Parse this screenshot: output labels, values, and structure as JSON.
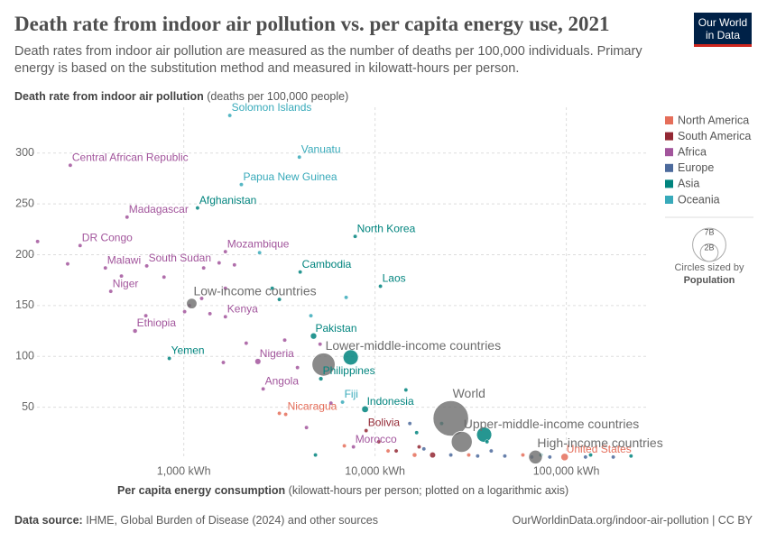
{
  "chart_data": {
    "type": "scatter",
    "title": "Death rate from indoor air pollution vs. per capita energy use, 2021",
    "subtitle": "Death rates from indoor air pollution are measured as the number of deaths per 100,000 individuals. Primary energy is based on the substitution method and measured in kilowatt-hours per person.",
    "y_label_bold": "Death rate from indoor air pollution",
    "y_label_rest": "(deaths per 100,000 people)",
    "x_label_bold": "Per capita energy consumption",
    "x_label_rest": "(kilowatt-hours per person; plotted on a logarithmic axis)",
    "source_label": "Data source:",
    "source_text": "IHME, Global Burden of Disease (2024) and other sources",
    "footer_right": "OurWorldinData.org/indoor-air-pollution | CC BY",
    "logo": [
      "Our World",
      "in Data"
    ],
    "x_log": true,
    "grid": true,
    "xlim": [
      160,
      270000
    ],
    "ylim": [
      0,
      345
    ],
    "xticks": [
      {
        "value": 1000,
        "label": "1,000 kWh"
      },
      {
        "value": 10000,
        "label": "10,000 kWh"
      },
      {
        "value": 100000,
        "label": "100,000 kWh"
      }
    ],
    "yticks": [
      50,
      100,
      150,
      200,
      250,
      300
    ],
    "legend_position": "right",
    "size_legend_title": "Circles sized by",
    "size_legend_variable": "Population",
    "size_legend_ticks": [
      {
        "value": 7000,
        "label": "7B"
      },
      {
        "value": 2000,
        "label": "2B"
      }
    ],
    "series": [
      {
        "name": "North America",
        "color": "#e56e5a",
        "x": [
          3410,
          98000,
          3160,
          6910,
          11700,
          16100,
          30900,
          59300
        ],
        "values": [
          43,
          1,
          44,
          12,
          7,
          3,
          3,
          3
        ],
        "sizes": [
          7,
          335,
          10,
          18,
          11,
          128,
          3,
          38
        ],
        "labels": [
          "Nicaragua",
          "United States",
          null,
          null,
          null,
          null,
          null,
          null
        ]
      },
      {
        "name": "South America",
        "color": "#932834",
        "x": [
          8980,
          10460,
          12900,
          20000,
          17000
        ],
        "values": [
          27,
          16,
          7,
          3,
          11
        ],
        "sizes": [
          12,
          45,
          33,
          215,
          50
        ],
        "labels": [
          "Bolivia",
          null,
          null,
          null,
          null
        ]
      },
      {
        "name": "Africa",
        "color": "#a2559c",
        "x": [
          255,
          505,
          287,
          1650,
          389,
          640,
          415,
          1650,
          556,
          2440,
          2600,
          7710,
          172,
          247,
          472,
          788,
          1270,
          1530,
          1840,
          1240,
          1070,
          1370,
          633,
          2120,
          3370,
          3930,
          1610,
          5160,
          5880,
          4380,
          1650,
          1010
        ],
        "values": [
          288,
          237,
          209,
          203,
          187,
          189,
          164,
          139,
          125,
          95,
          68,
          11,
          213,
          191,
          179,
          178,
          187,
          192,
          190,
          157,
          150,
          142,
          140,
          113,
          116,
          89,
          94,
          112,
          54,
          30,
          167,
          144
        ],
        "sizes": [
          5.6,
          30,
          100,
          33,
          20,
          11,
          26,
          55,
          126,
          223,
          36,
          37,
          2,
          5,
          12,
          20,
          8,
          15,
          6,
          3,
          18,
          9,
          25,
          13,
          16,
          7,
          30,
          2,
          1,
          14,
          4,
          11
        ],
        "labels": [
          "Central African Republic",
          "Madagascar",
          "DR Congo",
          "Mozambique",
          "Malawi",
          "South Sudan",
          "Niger",
          "Kenya",
          "Ethiopia",
          "Nigeria",
          "Angola",
          "Morocco",
          null,
          null,
          null,
          null,
          null,
          null,
          null,
          null,
          null,
          null,
          null,
          null,
          null,
          null,
          null,
          null,
          null,
          null,
          null,
          null
        ]
      },
      {
        "name": "Europe",
        "color": "#4c6a9c",
        "x": [
          24900,
          34400,
          47700,
          66000,
          82000,
          126000,
          176000,
          40500,
          18000,
          15200
        ],
        "values": [
          3,
          2,
          2,
          1,
          1,
          1,
          1,
          7,
          9,
          34
        ],
        "sizes": [
          38,
          60,
          68,
          67,
          84,
          9,
          5,
          10,
          19,
          3
        ],
        "labels": [
          null,
          null,
          null,
          null,
          null,
          null,
          null,
          null,
          null,
          null
        ]
      },
      {
        "name": "Asia",
        "color": "#00847e",
        "x": [
          1180,
          7870,
          4060,
          10670,
          4770,
          5210,
          8870,
          840,
          7460,
          37200,
          2900,
          3160,
          14500,
          22300,
          38500,
          73700,
          134000,
          218000,
          16500,
          4880
        ],
        "values": [
          246,
          218,
          183,
          169,
          120,
          78,
          48,
          98,
          99,
          23,
          167,
          156,
          67,
          34,
          16,
          3,
          3,
          2,
          25,
          3
        ],
        "sizes": [
          41,
          26,
          17,
          7.5,
          240,
          115,
          277,
          33,
          1430,
          1410,
          20,
          98,
          90,
          50,
          10,
          4,
          3,
          3,
          30,
          5
        ],
        "labels": [
          "Afghanistan",
          "North Korea",
          "Cambodia",
          "Laos",
          "Pakistan",
          "Philippines",
          "Indonesia",
          "Yemen",
          null,
          null,
          null,
          null,
          null,
          null,
          null,
          null,
          null,
          null,
          null,
          null
        ]
      },
      {
        "name": "Oceania",
        "color": "#38aaba",
        "x": [
          1740,
          4020,
          2000,
          6760,
          2490,
          7060,
          4620
        ],
        "values": [
          337,
          296,
          269,
          55,
          202,
          158,
          140
        ],
        "sizes": [
          0.7,
          0.3,
          10,
          0.9,
          0.2,
          0.1,
          0.3
        ],
        "labels": [
          "Solomon Islands",
          "Vanuatu",
          "Papua New Guinea",
          "Fiji",
          null,
          null,
          null
        ]
      }
    ],
    "aggregates": {
      "color": "#6d6d6d",
      "x": [
        1100,
        5380,
        24900,
        28400,
        69000
      ],
      "values": [
        152,
        92,
        39,
        16,
        1
      ],
      "sizes": [
        700,
        3400,
        8000,
        2800,
        1200
      ],
      "labels": [
        "Low-income countries",
        "Lower-middle-income countries",
        "World",
        "Upper-middle-income countries",
        "High-income countries"
      ]
    }
  }
}
